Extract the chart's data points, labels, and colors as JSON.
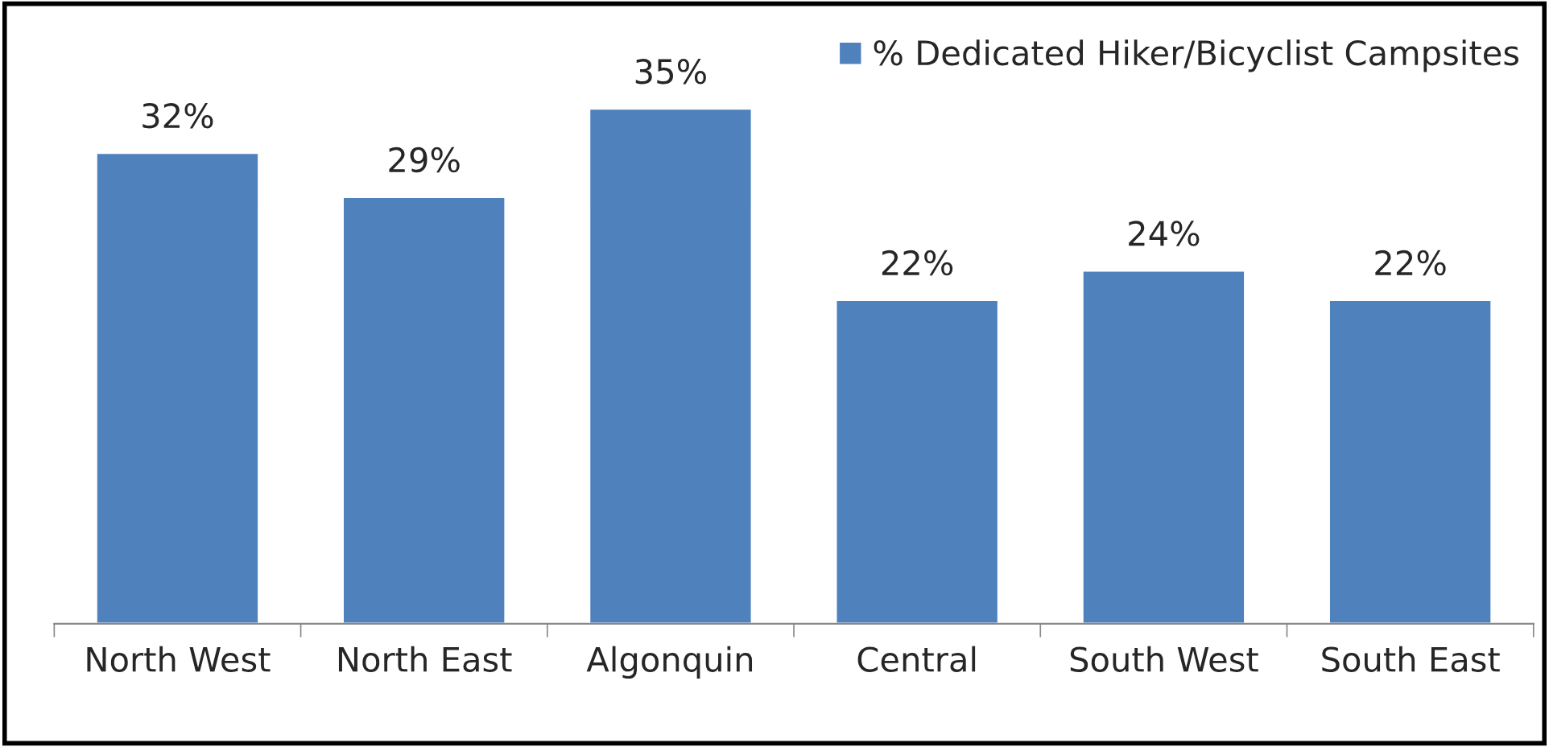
{
  "chart_data": {
    "type": "bar",
    "categories": [
      "North West",
      "North East",
      "Algonquin",
      "Central",
      "South West",
      "South East"
    ],
    "series": [
      {
        "name": "% Dedicated Hiker/Bicyclist Campsites",
        "color": "#4f81bd",
        "values": [
          32,
          29,
          35,
          22,
          24,
          22
        ],
        "value_labels": [
          "32%",
          "29%",
          "35%",
          "22%",
          "24%",
          "22%"
        ]
      }
    ],
    "legend": "top right",
    "grid": false
  }
}
